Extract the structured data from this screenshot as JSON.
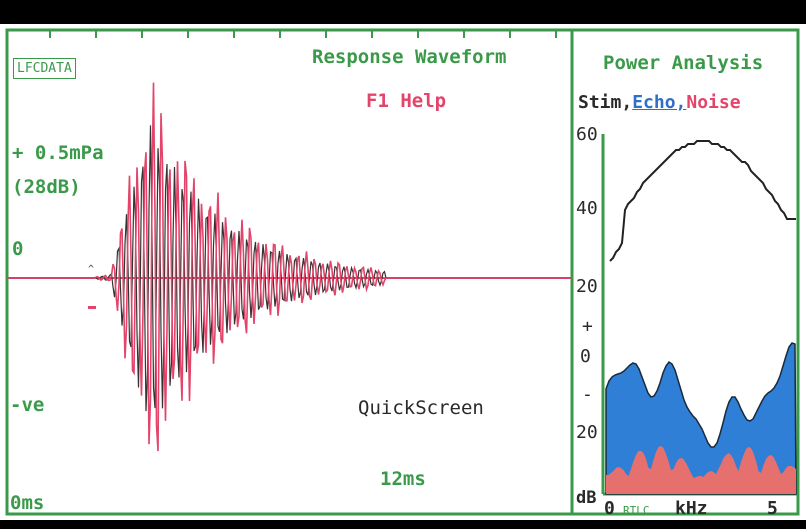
{
  "colors": {
    "frame": "#3a9a4a",
    "stimulus": "#e2446a",
    "echo": "#2f7fd6",
    "noise": "#e6706e",
    "text_dark": "#2a2a2a",
    "background": "#ffffff"
  },
  "waveform_panel": {
    "badge": "LFCDATA",
    "title": "Response Waveform",
    "help": "F1 Help",
    "amplitude_top": "+ 0.5mPa",
    "amplitude_db": "(28dB)",
    "zero": "0",
    "amplitude_bottom": "-ve",
    "mode": "QuickScreen",
    "time_end": "12ms",
    "time_start": "0ms"
  },
  "power_panel": {
    "title": "Power Analysis",
    "legend": {
      "stim": "Stim,",
      "echo": "Echo,",
      "noise": "Noise"
    },
    "y_ticks": [
      "60",
      "40",
      "20",
      "+",
      "0",
      "-",
      "20"
    ],
    "y_unit": "dB",
    "x_start": "0",
    "x_logo": "RTLC",
    "x_unit": "kHz",
    "x_end": "5"
  }
}
